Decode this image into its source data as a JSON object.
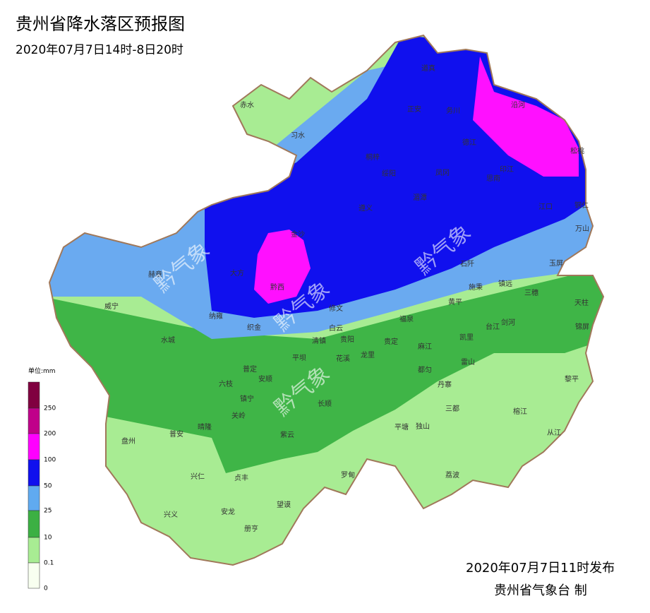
{
  "title": "贵州省降水落区预报图",
  "subtitle": "2020年07月7日14时-8日20时",
  "legend": {
    "unit": "单位:mm",
    "ticks": [
      "250",
      "200",
      "100",
      "50",
      "25",
      "10",
      "0.1",
      "0"
    ]
  },
  "watermark": "黔气象",
  "cities": [
    "赤水",
    "习水",
    "道真",
    "正安",
    "务川",
    "沿河",
    "桐梓",
    "绥阳",
    "凤冈",
    "德江",
    "印江",
    "思南",
    "松桃",
    "遵义",
    "湄潭",
    "江口",
    "铜仁",
    "万山",
    "金沙",
    "大方",
    "黔西",
    "赫章",
    "石阡",
    "玉屏",
    "施秉",
    "镇远",
    "三穗",
    "天柱",
    "锦屏",
    "威宁",
    "纳雍",
    "织金",
    "修文",
    "黄平",
    "剑河",
    "台江",
    "福泉",
    "白云",
    "清镇",
    "贵阳",
    "平坝",
    "花溪",
    "龙里",
    "贵定",
    "麻江",
    "凯里",
    "雷山",
    "都匀",
    "丹寨",
    "水城",
    "普定",
    "安顺",
    "六枝",
    "镇宁",
    "长顺",
    "关岭",
    "紫云",
    "平塘",
    "独山",
    "三都",
    "榕江",
    "黎平",
    "从江",
    "盘州",
    "普安",
    "晴隆",
    "兴仁",
    "贞丰",
    "罗甸",
    "荔波",
    "兴义",
    "安龙",
    "望谟",
    "册亨"
  ],
  "footer": {
    "issued": "2020年07月7日11时发布",
    "agency": "贵州省气象台 制"
  }
}
